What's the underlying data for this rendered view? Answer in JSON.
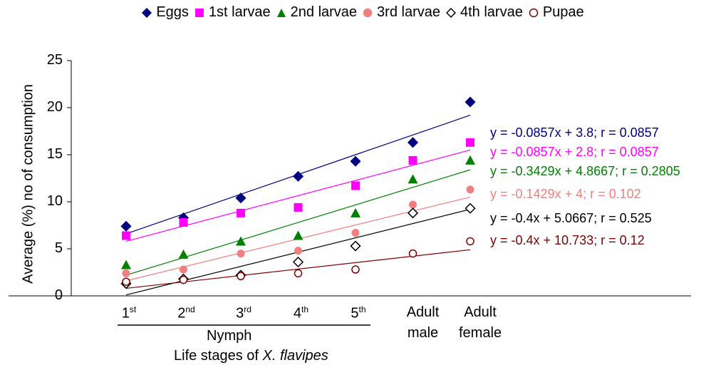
{
  "chart_data": {
    "type": "scatter",
    "ylabel": "Average (%) no of consumption",
    "ylim": [
      0,
      25
    ],
    "y_ticks": [
      "0",
      "5",
      "10",
      "15",
      "20",
      "25"
    ],
    "categories": [
      {
        "ord": "1",
        "sup": "st",
        "line1": "",
        "line2": ""
      },
      {
        "ord": "2",
        "sup": "nd",
        "line1": "",
        "line2": ""
      },
      {
        "ord": "3",
        "sup": "rd",
        "line1": "",
        "line2": ""
      },
      {
        "ord": "4",
        "sup": "th",
        "line1": "",
        "line2": ""
      },
      {
        "ord": "5",
        "sup": "th",
        "line1": "",
        "line2": ""
      },
      {
        "ord": "",
        "sup": "",
        "line1": "Adult",
        "line2": "male"
      },
      {
        "ord": "",
        "sup": "",
        "line1": "Adult",
        "line2": "female"
      }
    ],
    "group_label": "Nymph",
    "xlabel_prefix": "Life stages of ",
    "xlabel_italic": "X. flavipes",
    "legend_position": "top",
    "series": [
      {
        "name": "Eggs",
        "color": "#000080",
        "marker": "diamond-filled",
        "values": [
          7.4,
          8.3,
          10.4,
          12.7,
          14.3,
          16.3,
          20.6
        ],
        "trend": [
          6.6,
          19.2
        ],
        "equation": "y = -0.0857x + 3.8;  r = 0.0857"
      },
      {
        "name": "1st larvae",
        "color": "#ff00ff",
        "marker": "square-filled",
        "values": [
          6.4,
          7.8,
          8.8,
          9.4,
          11.7,
          14.4,
          16.3
        ],
        "trend": [
          5.8,
          15.5
        ],
        "equation": "y = -0.0857x + 2.8; r = 0.0857"
      },
      {
        "name": "2nd larvae",
        "color": "#008000",
        "marker": "triangle-filled",
        "values": [
          3.3,
          4.4,
          5.8,
          6.4,
          8.8,
          12.4,
          14.4
        ],
        "trend": [
          2.2,
          13.4
        ],
        "equation": "y = -0.3429x + 4.8667; r = 0.2805"
      },
      {
        "name": "3rd larvae",
        "color": "#f08080",
        "marker": "circle-filled",
        "values": [
          2.4,
          2.8,
          4.5,
          4.8,
          6.7,
          9.7,
          11.3
        ],
        "trend": [
          1.6,
          10.5
        ],
        "equation": "y = -0.1429x + 4; r = 0.102"
      },
      {
        "name": "4th larvae",
        "color": "#000000",
        "marker": "diamond-open",
        "values": [
          1.3,
          1.8,
          2.2,
          3.6,
          5.3,
          8.8,
          9.3
        ],
        "trend": [
          0.1,
          9.2
        ],
        "equation": "y = -0.4x + 5.0667; r = 0.525"
      },
      {
        "name": "Pupae",
        "color": "#800000",
        "marker": "circle-open",
        "values": [
          1.5,
          1.7,
          2.1,
          2.4,
          2.8,
          4.5,
          5.8
        ],
        "trend": [
          0.8,
          4.9
        ],
        "equation": "y = -0.4x + 10.733; r = 0.12"
      }
    ]
  }
}
